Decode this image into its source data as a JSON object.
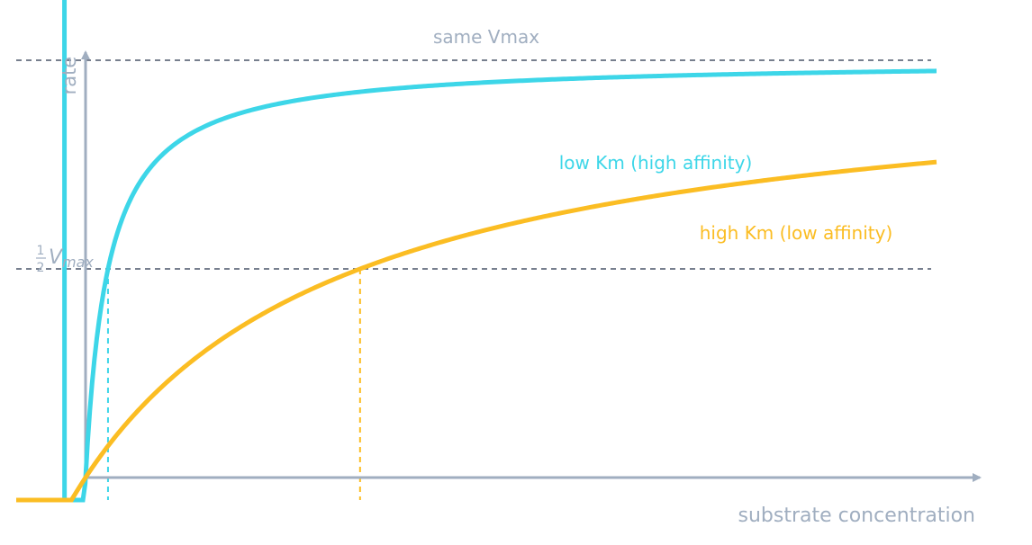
{
  "chart_data": {
    "type": "line",
    "title": "",
    "xlabel": "substrate concentration",
    "ylabel": "rate",
    "xlim": [
      -0.3,
      3.7
    ],
    "ylim": [
      -0.05,
      1.06
    ],
    "grid": false,
    "series": [
      {
        "name": "low Km (high affinity)",
        "km": 0.09,
        "vmax": 1.0,
        "color": "#3dd6e8"
      },
      {
        "name": "high Km (low affinity)",
        "km": 1.1,
        "vmax": 1.0,
        "color": "#fbbd23"
      }
    ],
    "annotations": {
      "vmax_label": "same Vmax",
      "half_vmax_frac": "1",
      "half_vmax_den": "2",
      "half_vmax_v": "V",
      "half_vmax_sub": "max"
    },
    "colors": {
      "axis": "#a0aec0",
      "reference_line": "#4a5568",
      "text": "#a0aec0"
    }
  }
}
